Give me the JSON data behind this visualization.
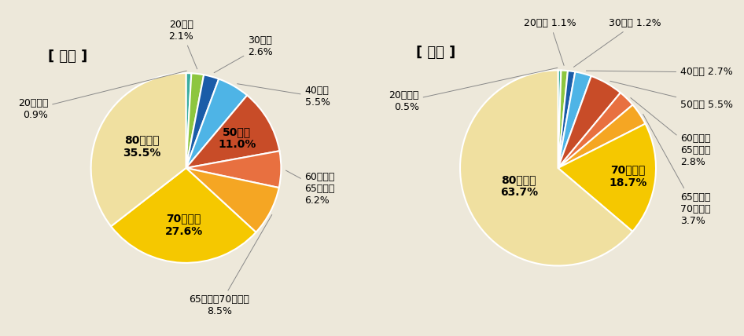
{
  "background_color": "#ede8da",
  "male_title": "[ 男性 ]",
  "female_title": "[ 女性 ]",
  "male_values": [
    0.9,
    2.1,
    2.6,
    5.5,
    11.0,
    6.2,
    8.5,
    27.6,
    35.5
  ],
  "female_values": [
    0.5,
    1.1,
    1.2,
    2.7,
    5.5,
    2.8,
    3.7,
    18.7,
    63.7
  ],
  "colors": [
    "#3aada0",
    "#8dc63f",
    "#1a5ca8",
    "#4eb4e6",
    "#c84c28",
    "#e87040",
    "#f5a623",
    "#f5c800",
    "#f0e0a0"
  ],
  "title_fontsize": 13,
  "label_fontsize": 9,
  "inside_label_fontsize": 10
}
